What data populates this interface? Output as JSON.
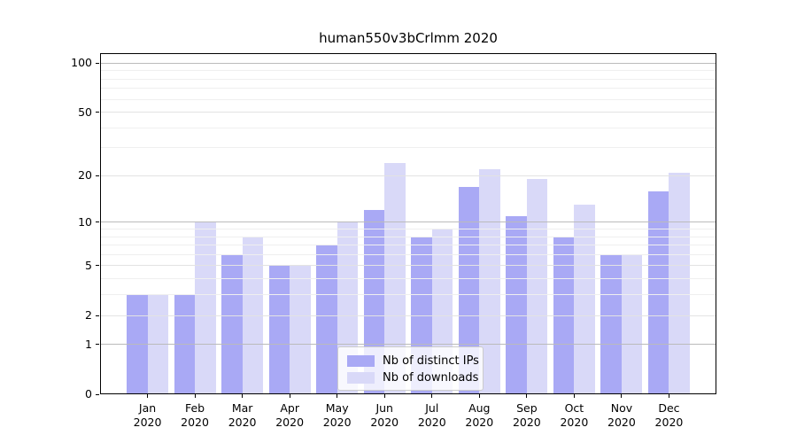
{
  "title": "human550v3bCrlmm 2020",
  "chart_data": {
    "type": "bar",
    "title": "human550v3bCrlmm 2020",
    "yscale": "log1p",
    "grid": true,
    "legend_position": "lower center",
    "categories": [
      "Jan 2020",
      "Feb 2020",
      "Mar 2020",
      "Apr 2020",
      "May 2020",
      "Jun 2020",
      "Jul 2020",
      "Aug 2020",
      "Sep 2020",
      "Oct 2020",
      "Nov 2020",
      "Dec 2020"
    ],
    "series": [
      {
        "name": "Nb of distinct IPs",
        "color": "#a9a9f5",
        "values": [
          3,
          3,
          6,
          5,
          7,
          12,
          8,
          17,
          11,
          8,
          6,
          16
        ]
      },
      {
        "name": "Nb of downloads",
        "color": "#d9d9f8",
        "values": [
          3,
          10,
          8,
          5,
          10,
          24,
          9,
          22,
          19,
          13,
          6,
          21
        ]
      }
    ],
    "yticks": [
      0,
      1,
      2,
      5,
      10,
      20,
      50,
      100
    ],
    "major_grid_values": [
      1,
      10,
      100
    ],
    "labeled_minor_grid_values": [
      2,
      5,
      20,
      50
    ],
    "minor_grid_values": [
      3,
      4,
      6,
      7,
      8,
      9,
      30,
      40,
      60,
      70,
      80,
      90
    ],
    "ylim": [
      0,
      115
    ],
    "xlabel": "",
    "ylabel": ""
  }
}
